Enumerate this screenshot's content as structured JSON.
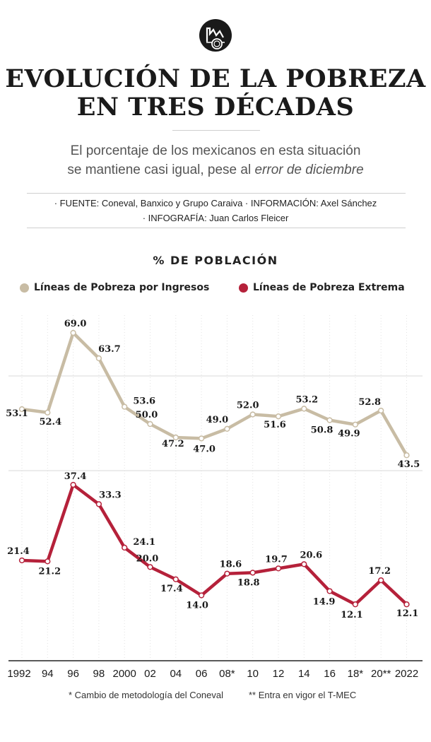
{
  "header": {
    "title_line1": "EVOLUCIÓN DE LA POBREZA",
    "title_line2": "EN TRES DÉCADAS",
    "subtitle_line1": "El porcentaje de los mexicanos en esta situación",
    "subtitle_line2_plain": "se mantiene casi igual, pese al ",
    "subtitle_line2_italic": "error de diciembre",
    "credits_line1": "· FUENTE: Coneval, Banxico y Grupo Caraiva · INFORMACIÓN: Axel Sánchez",
    "credits_line2": "· INFOGRAFÍA: Juan Carlos Fleicer",
    "logo_icon": "money-chart-logo-icon"
  },
  "footnotes": {
    "note1": "* Cambio de metodología del Coneval",
    "note2": "** Entra en vigor el T-MEC"
  },
  "chart_data": {
    "type": "line",
    "title": "% DE POBLACIÓN",
    "categories": [
      "1992",
      "94",
      "96",
      "98",
      "2000",
      "02",
      "04",
      "06",
      "08*",
      "10",
      "12",
      "14",
      "16",
      "18*",
      "20**",
      "2022"
    ],
    "series": [
      {
        "name": "Líneas de Pobreza por Ingresos",
        "color": "#c8bca4",
        "values": [
          53.1,
          52.4,
          69.0,
          63.7,
          53.6,
          50.0,
          47.2,
          47.0,
          49.0,
          52.0,
          51.6,
          53.2,
          50.8,
          49.9,
          52.8,
          43.5
        ]
      },
      {
        "name": "Líneas de Pobreza Extrema",
        "color": "#b5213a",
        "values": [
          21.4,
          21.2,
          37.4,
          33.3,
          24.1,
          20.0,
          17.4,
          14.0,
          18.6,
          18.8,
          19.7,
          20.6,
          14.9,
          12.1,
          17.2,
          12.1
        ]
      }
    ],
    "legend": "top",
    "grid": true
  }
}
